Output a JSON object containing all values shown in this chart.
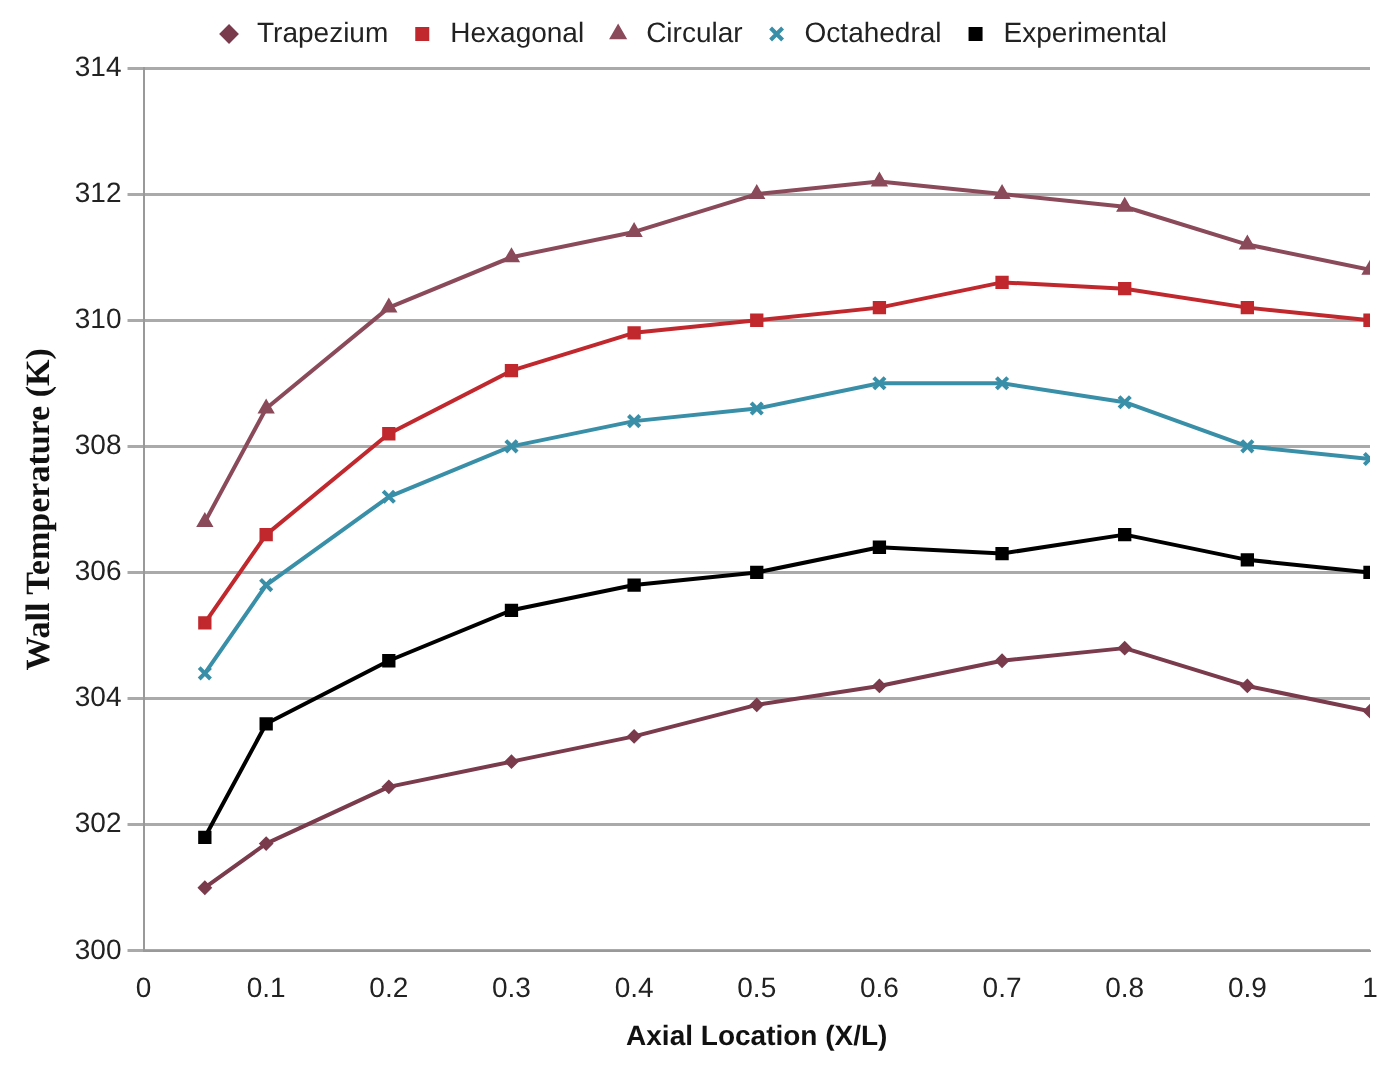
{
  "chart_data": {
    "type": "line",
    "xlabel": "Axial Location (X/L)",
    "ylabel": "Wall Temperature (K)",
    "x": [
      0.05,
      0.1,
      0.2,
      0.3,
      0.4,
      0.5,
      0.6,
      0.7,
      0.8,
      0.9,
      1
    ],
    "series": [
      {
        "name": "Trapezium",
        "color": "#7a3b4c",
        "marker": "diamond",
        "values": [
          301,
          301.7,
          302.6,
          303,
          303.4,
          303.9,
          304.2,
          304.6,
          304.8,
          304.2,
          303.8
        ]
      },
      {
        "name": "Hexagonal",
        "color": "#c0282d",
        "marker": "square",
        "values": [
          305.2,
          306.6,
          308.2,
          309.2,
          309.8,
          310,
          310.2,
          310.6,
          310.5,
          310.2,
          310
        ]
      },
      {
        "name": "Circular",
        "color": "#8b4a5a",
        "marker": "triangle",
        "values": [
          306.8,
          308.6,
          310.2,
          311,
          311.4,
          312,
          312.2,
          312,
          311.8,
          311.2,
          310.8
        ]
      },
      {
        "name": "Octahedral",
        "color": "#3a8fa8",
        "marker": "cross",
        "values": [
          304.4,
          305.8,
          307.2,
          308,
          308.4,
          308.6,
          309,
          309,
          308.7,
          308,
          307.8
        ]
      },
      {
        "name": "Experimental",
        "color": "#000000",
        "marker": "square",
        "values": [
          301.8,
          303.6,
          304.6,
          305.4,
          305.8,
          306,
          306.4,
          306.3,
          306.6,
          306.2,
          306
        ]
      }
    ],
    "xlim": [
      0,
      1
    ],
    "xticks": [
      0,
      0.1,
      0.2,
      0.3,
      0.4,
      0.5,
      0.6,
      0.7,
      0.8,
      0.9,
      1
    ],
    "ylim": [
      300,
      314
    ],
    "yticks": [
      300,
      302,
      304,
      306,
      308,
      310,
      312,
      314
    ],
    "grid": "y",
    "legend": "top",
    "line_style": "solid"
  }
}
